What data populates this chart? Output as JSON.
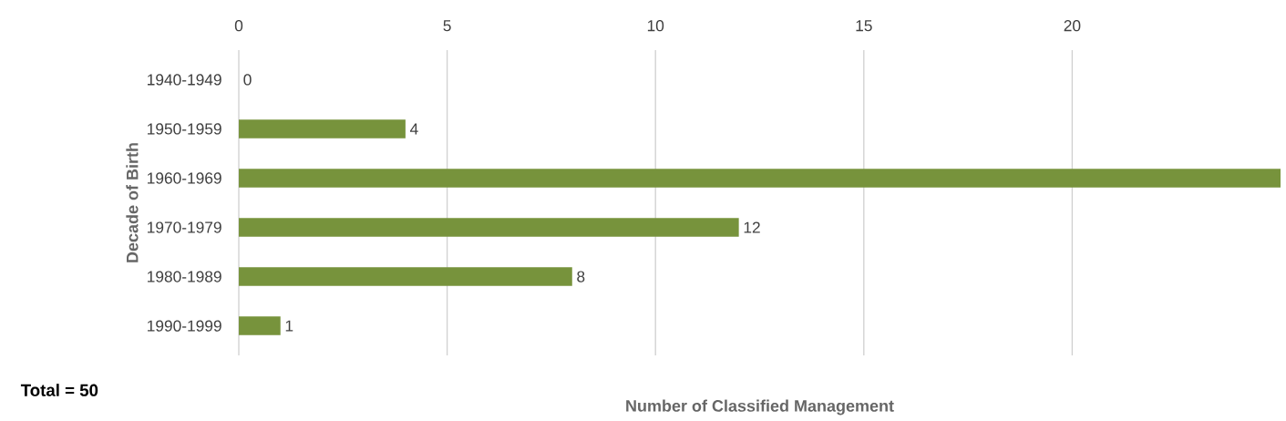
{
  "chart_data": {
    "type": "bar",
    "orientation": "horizontal",
    "xlabel": "Number of Classified Management",
    "ylabel": "Decade of Birth",
    "categories": [
      "1940-1949",
      "1950-1959",
      "1960-1969",
      "1970-1979",
      "1980-1989",
      "1990-1999"
    ],
    "values": [
      0,
      4,
      25,
      12,
      8,
      1
    ],
    "value_labels": [
      "0",
      "4",
      null,
      "12",
      "8",
      "1"
    ],
    "color": "#77933c",
    "xlim": [
      0,
      25
    ],
    "xticks": [
      0,
      5,
      10,
      15,
      20
    ],
    "grid": "x",
    "annotations": [
      "**Total = 50**"
    ]
  }
}
